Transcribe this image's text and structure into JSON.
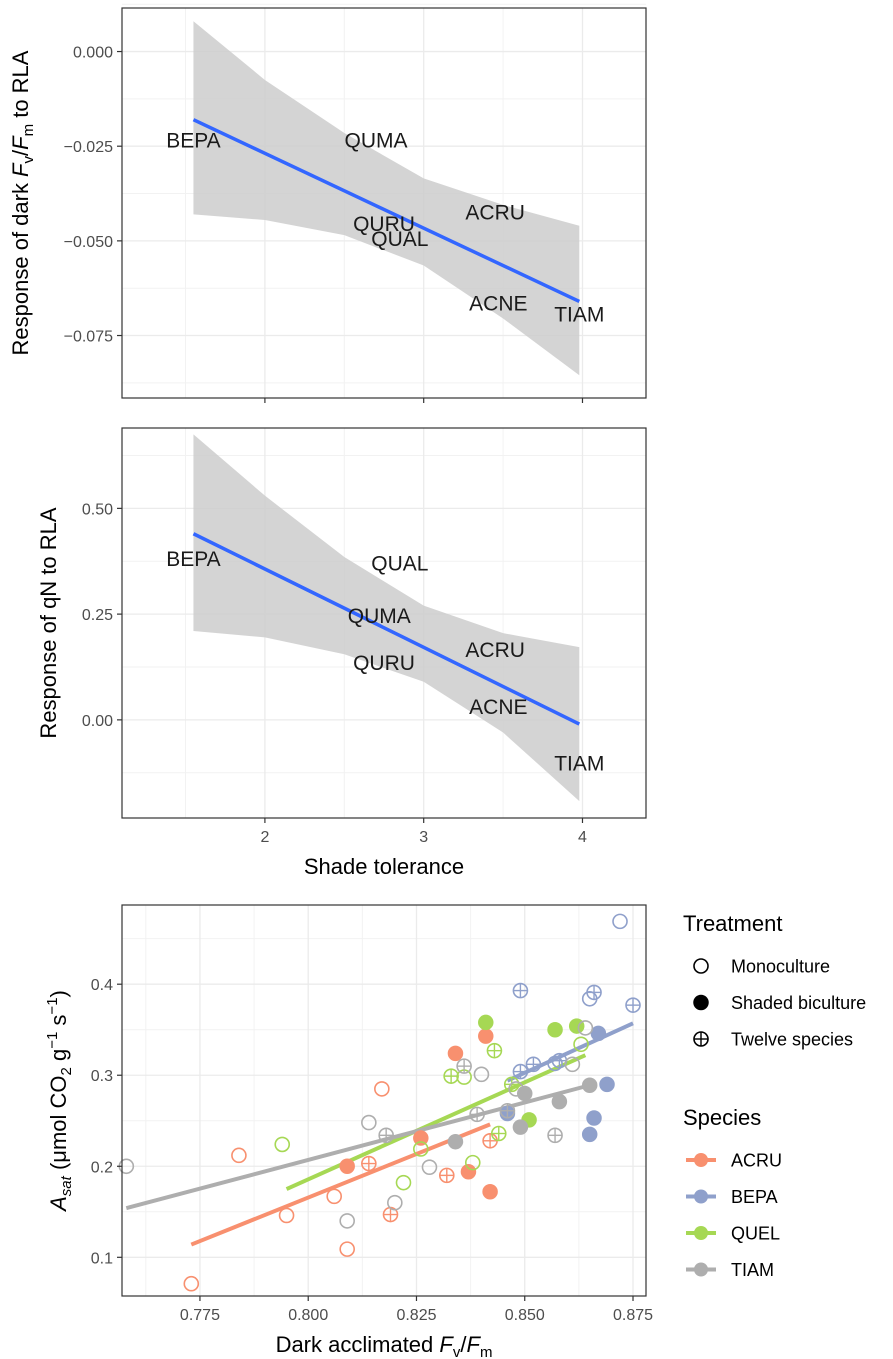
{
  "chart_data": [
    {
      "type": "scatter",
      "panel": "top",
      "xlim": [
        1.1,
        4.4
      ],
      "ylim": [
        -0.0915,
        0.0115
      ],
      "x_ticks": [
        2,
        3,
        4
      ],
      "y_ticks": [
        0.0,
        -0.025,
        -0.05,
        -0.075
      ],
      "y_tick_labels": [
        "0.000",
        "−0.025",
        "−0.050",
        "−0.075"
      ],
      "ylabel_parts": [
        "Response of dark ",
        "F",
        "v",
        "/",
        "F",
        "m",
        " to RLA"
      ],
      "grid": true,
      "points": [
        {
          "label": "BEPA",
          "x": 1.55,
          "y": -0.0235
        },
        {
          "label": "QUMA",
          "x": 2.7,
          "y": -0.0235
        },
        {
          "label": "ACRU",
          "x": 3.45,
          "y": -0.0425
        },
        {
          "label": "QURU",
          "x": 2.75,
          "y": -0.0455
        },
        {
          "label": "QUAL",
          "x": 2.85,
          "y": -0.0495
        },
        {
          "label": "ACNE",
          "x": 3.47,
          "y": -0.0665
        },
        {
          "label": "TIAM",
          "x": 3.98,
          "y": -0.0695
        }
      ],
      "fit": {
        "x": [
          1.55,
          3.98
        ],
        "y": [
          -0.018,
          -0.066
        ]
      },
      "ci_upper": {
        "x": [
          1.55,
          2.0,
          2.5,
          3.0,
          3.5,
          3.98
        ],
        "y": [
          0.008,
          -0.0075,
          -0.0215,
          -0.0335,
          -0.0405,
          -0.046
        ]
      },
      "ci_lower": {
        "x": [
          1.55,
          2.0,
          2.5,
          3.0,
          3.5,
          3.98
        ],
        "y": [
          -0.043,
          -0.0445,
          -0.0485,
          -0.0565,
          -0.0705,
          -0.0855
        ]
      },
      "colors": {
        "fit": "#3366FF",
        "ci": "#cccccc"
      }
    },
    {
      "type": "scatter",
      "panel": "middle",
      "xlim": [
        1.1,
        4.4
      ],
      "ylim": [
        -0.232,
        0.69
      ],
      "x_ticks": [
        2,
        3,
        4
      ],
      "y_ticks": [
        0.5,
        0.25,
        0.0
      ],
      "y_tick_labels": [
        "0.50",
        "0.25",
        "0.00"
      ],
      "xlabel": "Shade tolerance",
      "ylabel": "Response of qN to RLA",
      "grid": true,
      "points": [
        {
          "label": "BEPA",
          "x": 1.55,
          "y": 0.38
        },
        {
          "label": "QUAL",
          "x": 2.85,
          "y": 0.37
        },
        {
          "label": "QUMA",
          "x": 2.72,
          "y": 0.245
        },
        {
          "label": "ACRU",
          "x": 3.45,
          "y": 0.165
        },
        {
          "label": "QURU",
          "x": 2.75,
          "y": 0.135
        },
        {
          "label": "ACNE",
          "x": 3.47,
          "y": 0.03
        },
        {
          "label": "TIAM",
          "x": 3.98,
          "y": -0.103
        }
      ],
      "fit": {
        "x": [
          1.55,
          3.98
        ],
        "y": [
          0.44,
          -0.01
        ]
      },
      "ci_upper": {
        "x": [
          1.55,
          2.0,
          2.5,
          3.0,
          3.5,
          3.98
        ],
        "y": [
          0.675,
          0.53,
          0.385,
          0.27,
          0.205,
          0.172
        ]
      },
      "ci_lower": {
        "x": [
          1.55,
          2.0,
          2.5,
          3.0,
          3.5,
          3.98
        ],
        "y": [
          0.21,
          0.195,
          0.155,
          0.09,
          -0.03,
          -0.192
        ]
      },
      "colors": {
        "fit": "#3366FF",
        "ci": "#cccccc"
      }
    },
    {
      "type": "scatter",
      "panel": "bottom",
      "xlim": [
        0.757,
        0.878
      ],
      "ylim": [
        0.0575,
        0.487
      ],
      "x_ticks": [
        0.775,
        0.8,
        0.825,
        0.85,
        0.875
      ],
      "x_tick_labels": [
        "0.775",
        "0.800",
        "0.825",
        "0.850",
        "0.875"
      ],
      "y_ticks": [
        0.1,
        0.2,
        0.3,
        0.4
      ],
      "y_tick_labels": [
        "0.1",
        "0.2",
        "0.3",
        "0.4"
      ],
      "xlabel_parts": [
        "Dark acclimated ",
        "F",
        "v",
        "/",
        "F",
        "m"
      ],
      "ylabel_parts": [
        "A",
        "sat",
        " (μmol CO",
        "2",
        " g",
        "−1",
        " s",
        "−1",
        ")"
      ],
      "grid": true,
      "legend": {
        "position": "right",
        "treatment_title": "Treatment",
        "treatment_items": [
          {
            "shape": "open",
            "label": "Monoculture"
          },
          {
            "shape": "filled",
            "label": "Shaded biculture"
          },
          {
            "shape": "cross",
            "label": "Twelve species"
          }
        ],
        "species_title": "Species",
        "species_items": [
          {
            "name": "ACRU",
            "color": "#F8906F"
          },
          {
            "name": "BEPA",
            "color": "#8FA0CB"
          },
          {
            "name": "QUEL",
            "color": "#A6D854"
          },
          {
            "name": "TIAM",
            "color": "#AEAEAE"
          }
        ]
      },
      "fits": [
        {
          "species": "ACRU",
          "x": [
            0.773,
            0.842
          ],
          "y": [
            0.114,
            0.246
          ]
        },
        {
          "species": "BEPA",
          "x": [
            0.846,
            0.875
          ],
          "y": [
            0.294,
            0.357
          ]
        },
        {
          "species": "QUEL",
          "x": [
            0.795,
            0.864
          ],
          "y": [
            0.175,
            0.322
          ]
        },
        {
          "species": "TIAM",
          "x": [
            0.758,
            0.865
          ],
          "y": [
            0.154,
            0.289
          ]
        }
      ],
      "points": [
        {
          "species": "ACRU",
          "treatment": "open",
          "x": 0.773,
          "y": 0.071
        },
        {
          "species": "ACRU",
          "treatment": "open",
          "x": 0.784,
          "y": 0.212
        },
        {
          "species": "ACRU",
          "treatment": "open",
          "x": 0.795,
          "y": 0.146
        },
        {
          "species": "ACRU",
          "treatment": "open",
          "x": 0.806,
          "y": 0.167
        },
        {
          "species": "ACRU",
          "treatment": "open",
          "x": 0.809,
          "y": 0.109
        },
        {
          "species": "ACRU",
          "treatment": "open",
          "x": 0.817,
          "y": 0.285
        },
        {
          "species": "ACRU",
          "treatment": "filled",
          "x": 0.809,
          "y": 0.2
        },
        {
          "species": "ACRU",
          "treatment": "filled",
          "x": 0.826,
          "y": 0.231
        },
        {
          "species": "ACRU",
          "treatment": "filled",
          "x": 0.834,
          "y": 0.324
        },
        {
          "species": "ACRU",
          "treatment": "filled",
          "x": 0.837,
          "y": 0.194
        },
        {
          "species": "ACRU",
          "treatment": "filled",
          "x": 0.841,
          "y": 0.343
        },
        {
          "species": "ACRU",
          "treatment": "filled",
          "x": 0.842,
          "y": 0.172
        },
        {
          "species": "ACRU",
          "treatment": "cross",
          "x": 0.814,
          "y": 0.203
        },
        {
          "species": "ACRU",
          "treatment": "cross",
          "x": 0.819,
          "y": 0.147
        },
        {
          "species": "ACRU",
          "treatment": "cross",
          "x": 0.832,
          "y": 0.19
        },
        {
          "species": "ACRU",
          "treatment": "cross",
          "x": 0.842,
          "y": 0.228
        },
        {
          "species": "BEPA",
          "treatment": "open",
          "x": 0.872,
          "y": 0.469
        },
        {
          "species": "BEPA",
          "treatment": "open",
          "x": 0.865,
          "y": 0.384
        },
        {
          "species": "BEPA",
          "treatment": "open",
          "x": 0.857,
          "y": 0.313
        },
        {
          "species": "BEPA",
          "treatment": "filled",
          "x": 0.869,
          "y": 0.29
        },
        {
          "species": "BEPA",
          "treatment": "filled",
          "x": 0.867,
          "y": 0.346
        },
        {
          "species": "BEPA",
          "treatment": "filled",
          "x": 0.866,
          "y": 0.253
        },
        {
          "species": "BEPA",
          "treatment": "filled",
          "x": 0.865,
          "y": 0.235
        },
        {
          "species": "BEPA",
          "treatment": "filled",
          "x": 0.846,
          "y": 0.258
        },
        {
          "species": "BEPA",
          "treatment": "cross",
          "x": 0.849,
          "y": 0.393
        },
        {
          "species": "BEPA",
          "treatment": "cross",
          "x": 0.866,
          "y": 0.391
        },
        {
          "species": "BEPA",
          "treatment": "cross",
          "x": 0.875,
          "y": 0.377
        },
        {
          "species": "BEPA",
          "treatment": "cross",
          "x": 0.852,
          "y": 0.312
        },
        {
          "species": "BEPA",
          "treatment": "cross",
          "x": 0.849,
          "y": 0.304
        },
        {
          "species": "BEPA",
          "treatment": "cross",
          "x": 0.858,
          "y": 0.316
        },
        {
          "species": "QUEL",
          "treatment": "open",
          "x": 0.794,
          "y": 0.224
        },
        {
          "species": "QUEL",
          "treatment": "open",
          "x": 0.822,
          "y": 0.182
        },
        {
          "species": "QUEL",
          "treatment": "open",
          "x": 0.826,
          "y": 0.219
        },
        {
          "species": "QUEL",
          "treatment": "open",
          "x": 0.836,
          "y": 0.298
        },
        {
          "species": "QUEL",
          "treatment": "open",
          "x": 0.838,
          "y": 0.204
        },
        {
          "species": "QUEL",
          "treatment": "open",
          "x": 0.863,
          "y": 0.334
        },
        {
          "species": "QUEL",
          "treatment": "filled",
          "x": 0.841,
          "y": 0.358
        },
        {
          "species": "QUEL",
          "treatment": "filled",
          "x": 0.851,
          "y": 0.251
        },
        {
          "species": "QUEL",
          "treatment": "filled",
          "x": 0.857,
          "y": 0.35
        },
        {
          "species": "QUEL",
          "treatment": "filled",
          "x": 0.862,
          "y": 0.354
        },
        {
          "species": "QUEL",
          "treatment": "cross",
          "x": 0.833,
          "y": 0.299
        },
        {
          "species": "QUEL",
          "treatment": "cross",
          "x": 0.843,
          "y": 0.327
        },
        {
          "species": "QUEL",
          "treatment": "cross",
          "x": 0.844,
          "y": 0.236
        },
        {
          "species": "QUEL",
          "treatment": "cross",
          "x": 0.847,
          "y": 0.29
        },
        {
          "species": "TIAM",
          "treatment": "open",
          "x": 0.758,
          "y": 0.2
        },
        {
          "species": "TIAM",
          "treatment": "open",
          "x": 0.809,
          "y": 0.14
        },
        {
          "species": "TIAM",
          "treatment": "open",
          "x": 0.814,
          "y": 0.248
        },
        {
          "species": "TIAM",
          "treatment": "open",
          "x": 0.82,
          "y": 0.16
        },
        {
          "species": "TIAM",
          "treatment": "open",
          "x": 0.828,
          "y": 0.199
        },
        {
          "species": "TIAM",
          "treatment": "open",
          "x": 0.84,
          "y": 0.301
        },
        {
          "species": "TIAM",
          "treatment": "open",
          "x": 0.848,
          "y": 0.285
        },
        {
          "species": "TIAM",
          "treatment": "open",
          "x": 0.861,
          "y": 0.312
        },
        {
          "species": "TIAM",
          "treatment": "open",
          "x": 0.864,
          "y": 0.352
        },
        {
          "species": "TIAM",
          "treatment": "filled",
          "x": 0.834,
          "y": 0.227
        },
        {
          "species": "TIAM",
          "treatment": "filled",
          "x": 0.849,
          "y": 0.243
        },
        {
          "species": "TIAM",
          "treatment": "filled",
          "x": 0.85,
          "y": 0.28
        },
        {
          "species": "TIAM",
          "treatment": "filled",
          "x": 0.858,
          "y": 0.271
        },
        {
          "species": "TIAM",
          "treatment": "filled",
          "x": 0.865,
          "y": 0.289
        },
        {
          "species": "TIAM",
          "treatment": "cross",
          "x": 0.818,
          "y": 0.234
        },
        {
          "species": "TIAM",
          "treatment": "cross",
          "x": 0.836,
          "y": 0.31
        },
        {
          "species": "TIAM",
          "treatment": "cross",
          "x": 0.839,
          "y": 0.257
        },
        {
          "species": "TIAM",
          "treatment": "cross",
          "x": 0.846,
          "y": 0.261
        },
        {
          "species": "TIAM",
          "treatment": "cross",
          "x": 0.857,
          "y": 0.234
        }
      ]
    }
  ]
}
